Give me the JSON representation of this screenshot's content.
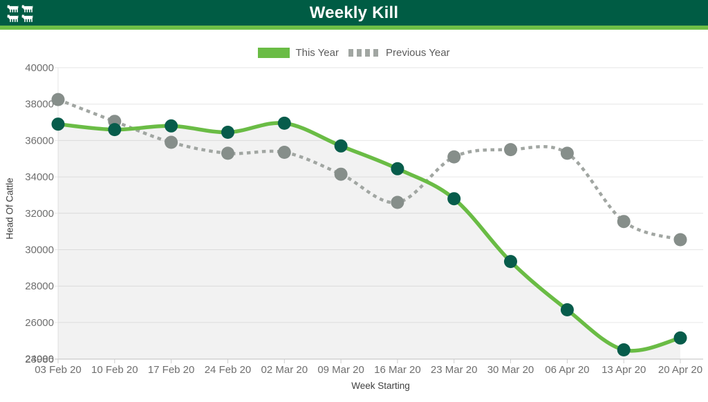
{
  "header": {
    "title": "Weekly Kill",
    "icon": "cattle-icon",
    "bg_color": "#005C44",
    "accent_color": "#6DBE46"
  },
  "chart_data": {
    "type": "line",
    "title": "Weekly Kill",
    "xlabel": "Week Starting",
    "ylabel": "Head Of Cattle",
    "categories": [
      "03 Feb 20",
      "10 Feb 20",
      "17 Feb 20",
      "24 Feb 20",
      "02 Mar 20",
      "09 Mar 20",
      "16 Mar 20",
      "23 Mar 20",
      "30 Mar 20",
      "06 Apr 20",
      "13 Apr 20",
      "20 Apr 20"
    ],
    "series": [
      {
        "name": "This Year",
        "style": "solid",
        "fill": true,
        "color": "#6ABC45",
        "point_color": "#075C4B",
        "values": [
          36900,
          36600,
          36800,
          36450,
          36950,
          35700,
          34450,
          32800,
          29350,
          26700,
          24500,
          25150
        ]
      },
      {
        "name": "Previous Year",
        "style": "dashed",
        "fill": false,
        "color": "#A1A6A2",
        "point_color": "#868E8A",
        "values": [
          38250,
          37050,
          35900,
          35300,
          35350,
          34150,
          32600,
          35100,
          35500,
          35300,
          31550,
          30550
        ]
      }
    ],
    "yticks": [
      40000,
      38000,
      36000,
      34000,
      32000,
      30000,
      28000,
      26000,
      24000
    ],
    "ymin_label": "23986",
    "ylim": [
      23986,
      40000
    ],
    "grid": "horizontal",
    "legend_position": "top",
    "fill_color": "#808080",
    "fill_opacity": 0.1,
    "gridline_color": "#E6E6E6",
    "axis_line_color": "#C9C9C9",
    "tick_color": "#CCCCCC",
    "tick_label_color": "#6E6E6E"
  }
}
